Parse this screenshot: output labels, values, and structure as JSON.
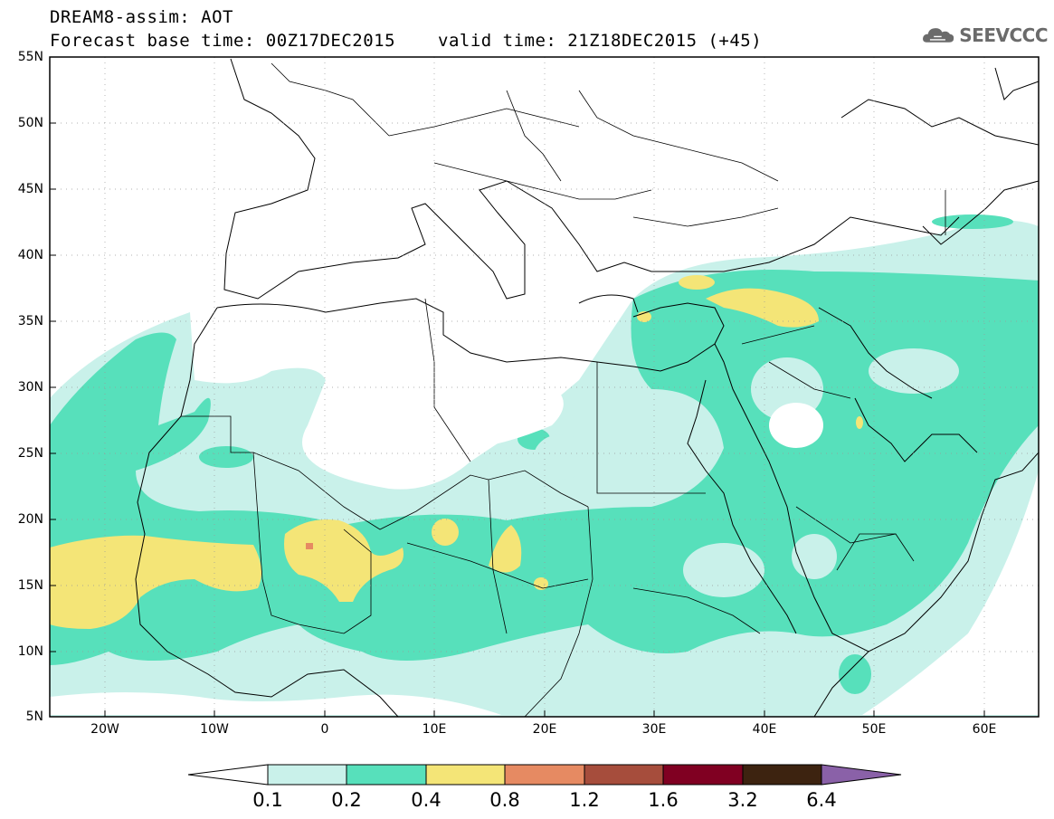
{
  "header": {
    "title_line1": "DREAM8-assim: AOT",
    "title_line2": "Forecast base time: 00Z17DEC2015",
    "valid_time": "valid time: 21Z18DEC2015 (+45)",
    "logo_text": "SEEVCCC",
    "logo_icon": "cloud-icon"
  },
  "axes": {
    "lat_labels": [
      "55N",
      "50N",
      "45N",
      "40N",
      "35N",
      "30N",
      "25N",
      "20N",
      "15N",
      "10N",
      "5N"
    ],
    "lon_labels": [
      "20W",
      "10W",
      "0",
      "10E",
      "20E",
      "30E",
      "40E",
      "50E",
      "60E"
    ],
    "lat_range": [
      5,
      55
    ],
    "lon_range": [
      -25,
      65
    ]
  },
  "colorbar": {
    "labels": [
      "0.1",
      "0.2",
      "0.4",
      "0.8",
      "1.2",
      "1.6",
      "3.2",
      "6.4"
    ],
    "colors": [
      "#ffffff",
      "#c9f1ea",
      "#57e0bb",
      "#f4e577",
      "#e68a62",
      "#a64d3c",
      "#800022",
      "#3d2310",
      "#8a61a8"
    ]
  },
  "legend_colors": {
    "white": "#ffffff",
    "light_teal": "#c9f1ea",
    "teal": "#57e0bb",
    "yellow": "#f4e577",
    "salmon": "#e68a62"
  }
}
